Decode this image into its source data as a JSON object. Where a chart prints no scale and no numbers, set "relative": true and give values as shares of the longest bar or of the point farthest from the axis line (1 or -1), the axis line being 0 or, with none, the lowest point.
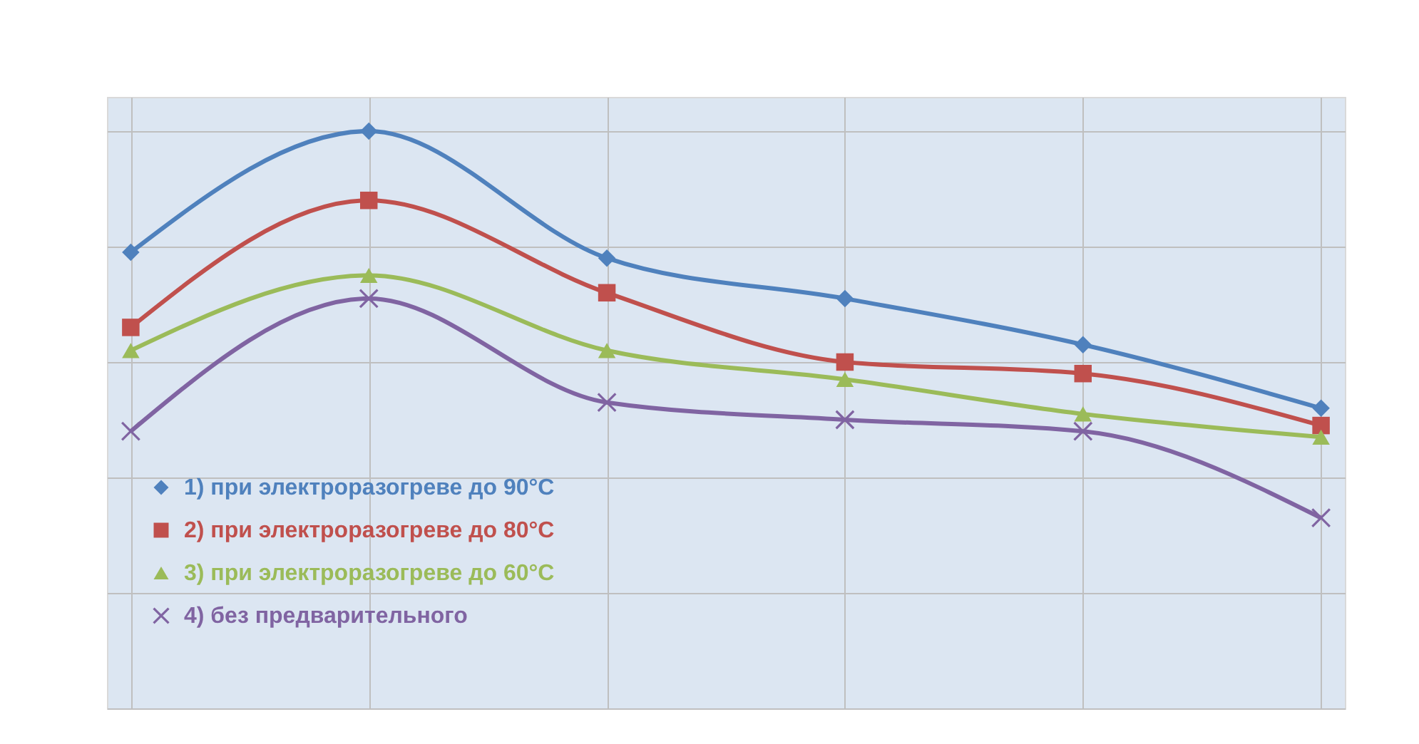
{
  "chart_data": {
    "type": "line",
    "relative": true,
    "categories": [
      null,
      null,
      null,
      null,
      null,
      null
    ],
    "grid": true,
    "legend": "bottom left",
    "series": [
      {
        "name": "1) при электроразогреве до 90°C",
        "color": "#4f81bd",
        "marker": "diamond",
        "values": [
          0.79,
          1,
          0.78,
          0.71,
          0.63,
          0.52
        ]
      },
      {
        "name": "2) при электроразогреве до 80°C",
        "color": "#c0504d",
        "marker": "square",
        "values": [
          0.66,
          0.88,
          0.72,
          0.6,
          0.58,
          0.49
        ]
      },
      {
        "name": "3) при электроразогреве до 60°C",
        "color": "#9bbb59",
        "marker": "triangle",
        "values": [
          0.62,
          0.75,
          0.62,
          0.57,
          0.51,
          0.47
        ]
      },
      {
        "name": "4) без предварительного",
        "color": "#8064a2",
        "marker": "cross",
        "values": [
          0.48,
          0.71,
          0.53,
          0.5,
          0.48,
          0.33
        ]
      }
    ]
  }
}
